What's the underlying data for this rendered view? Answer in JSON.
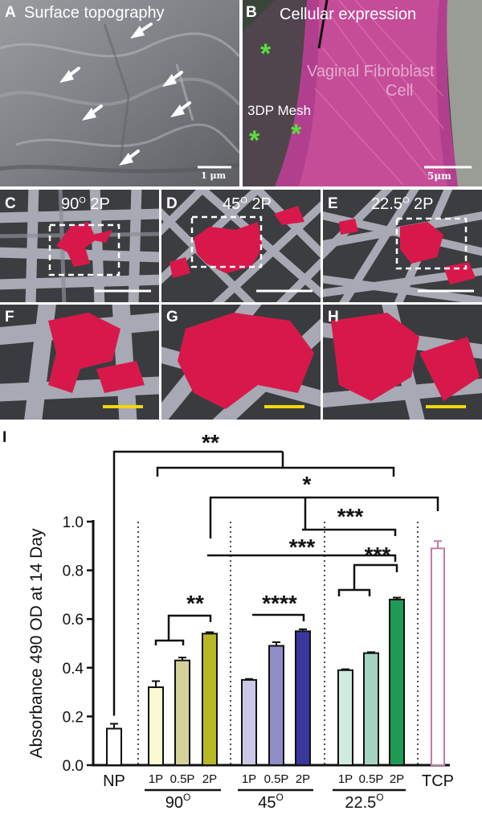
{
  "panels": {
    "A": {
      "label": "A",
      "title": "Surface topography",
      "scale": "1 μm"
    },
    "B": {
      "label": "B",
      "title": "Cellular expression",
      "text1": "Vaginal Fibroblast",
      "text2": "Cell",
      "mesh": "3DP Mesh",
      "scale": "5μm"
    },
    "C": {
      "label": "C",
      "title_base": "90",
      "title_sup": "O",
      "title_tail": " 2P"
    },
    "D": {
      "label": "D",
      "title_base": "45",
      "title_sup": "O",
      "title_tail": " 2P"
    },
    "E": {
      "label": "E",
      "title_base": "22.5",
      "title_sup": "O",
      "title_tail": " 2P"
    },
    "F": {
      "label": "F"
    },
    "G": {
      "label": "G"
    },
    "H": {
      "label": "H"
    }
  },
  "colors": {
    "cell": "#d8184a",
    "fiber": "#a7a9b4",
    "sem_bg": "#3f4044",
    "overlay": "#c54d97",
    "yellow_bar": "#f1d80a"
  },
  "chart_data": {
    "type": "bar",
    "panel_label": "I",
    "ylabel": "Absorbance 490 OD at 14 Day",
    "ylim": [
      0,
      1.0
    ],
    "yticks": [
      "0.0",
      "0.2",
      "0.4",
      "0.6",
      "0.8",
      "1.0"
    ],
    "ytick_values": [
      0,
      0.2,
      0.4,
      0.6,
      0.8,
      1.0
    ],
    "bars": [
      {
        "label": "NP",
        "value": 0.15,
        "err": 0.02,
        "fill": "#ffffff",
        "stroke": "#111111"
      },
      {
        "label": "1P",
        "value": 0.32,
        "err": 0.025,
        "fill": "#fbf8d2",
        "stroke": "#111111"
      },
      {
        "label": "0.5P",
        "value": 0.43,
        "err": 0.012,
        "fill": "#d3d19a",
        "stroke": "#111111"
      },
      {
        "label": "2P",
        "value": 0.54,
        "err": 0.006,
        "fill": "#b7b826",
        "stroke": "#111111"
      },
      {
        "label": "1P",
        "value": 0.35,
        "err": 0.004,
        "fill": "#c9c8e5",
        "stroke": "#111111"
      },
      {
        "label": "0.5P",
        "value": 0.49,
        "err": 0.015,
        "fill": "#8f8cc7",
        "stroke": "#111111"
      },
      {
        "label": "2P",
        "value": 0.55,
        "err": 0.008,
        "fill": "#3a36a0",
        "stroke": "#111111"
      },
      {
        "label": "1P",
        "value": 0.39,
        "err": 0.004,
        "fill": "#cfeadf",
        "stroke": "#111111"
      },
      {
        "label": "0.5P",
        "value": 0.46,
        "err": 0.004,
        "fill": "#a5d5c2",
        "stroke": "#111111"
      },
      {
        "label": "2P",
        "value": 0.68,
        "err": 0.008,
        "fill": "#1e9a55",
        "stroke": "#111111"
      },
      {
        "label": "TCP",
        "value": 0.89,
        "err": 0.03,
        "fill": "#ffffff",
        "stroke": "#c27aa8"
      }
    ],
    "groups": [
      {
        "base": "90",
        "sup": "O"
      },
      {
        "base": "45",
        "sup": "O"
      },
      {
        "base": "22.5",
        "sup": "O"
      }
    ],
    "significance": [
      "**",
      "*",
      "***",
      "***",
      "**",
      "****",
      "***"
    ]
  }
}
